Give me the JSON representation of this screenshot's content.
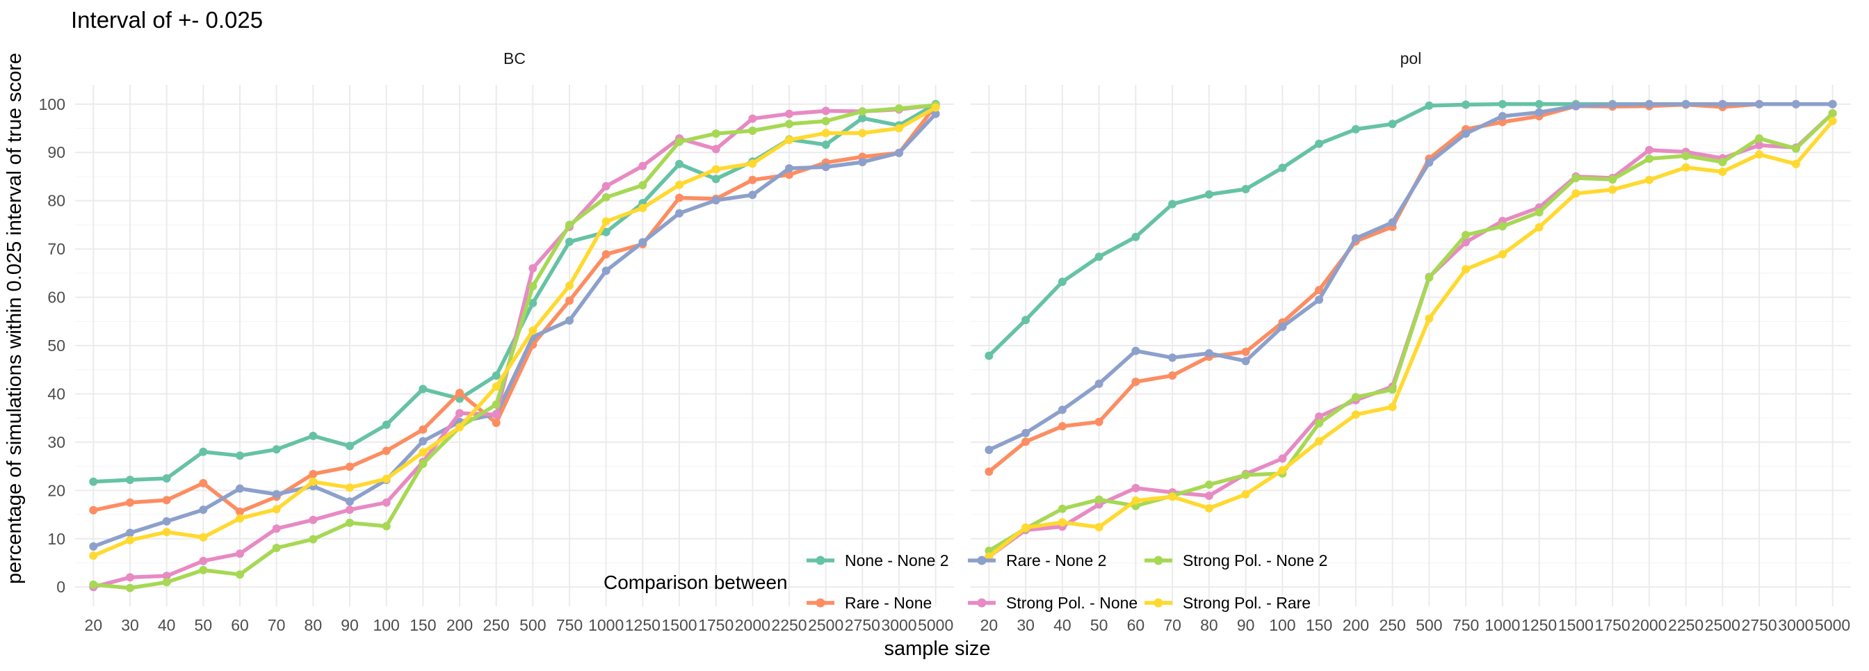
{
  "chart_data": {
    "type": "line",
    "title": "Interval of +- 0.025",
    "xlabel": "sample size",
    "ylabel": "percentage of simulations within 0.025 interval of true score",
    "ylim": [
      -4,
      104
    ],
    "y_ticks": [
      0,
      10,
      20,
      30,
      40,
      50,
      60,
      70,
      80,
      90,
      100
    ],
    "grid": true,
    "legend": {
      "title": "Comparison between",
      "position": "bottom",
      "entries": [
        {
          "name": "None - None 2",
          "color": "#66C2A5"
        },
        {
          "name": "Rare - None 2",
          "color": "#8DA0CB"
        },
        {
          "name": "Strong Pol. - None 2",
          "color": "#A6D854"
        },
        {
          "name": "Rare - None",
          "color": "#FC8D62"
        },
        {
          "name": "Strong Pol. - None",
          "color": "#E78AC3"
        },
        {
          "name": "Strong Pol. - Rare",
          "color": "#FFD92F"
        }
      ]
    },
    "categories": [
      "20",
      "30",
      "40",
      "50",
      "60",
      "70",
      "80",
      "90",
      "100",
      "150",
      "200",
      "250",
      "500",
      "750",
      "1000",
      "1250",
      "1500",
      "1750",
      "2000",
      "2250",
      "2500",
      "2750",
      "3000",
      "5000"
    ],
    "panels": [
      {
        "label": "BC",
        "series": [
          {
            "name": "None - None 2",
            "color": "#66C2A5",
            "values": [
              21.8,
              22.2,
              22.5,
              28,
              27.2,
              28.5,
              31.3,
              29.2,
              33.6,
              41,
              39,
              43.8,
              58.8,
              71.5,
              73.5,
              79.5,
              87.6,
              84.5,
              88.1,
              92.7,
              91.6,
              97.1,
              95.6,
              100
            ]
          },
          {
            "name": "Rare - None",
            "color": "#FC8D62",
            "values": [
              15.9,
              17.5,
              18,
              21.5,
              15.6,
              18.7,
              23.4,
              24.9,
              28.2,
              32.6,
              40.2,
              34,
              50.2,
              59.3,
              68.9,
              71,
              80.6,
              80.4,
              84.3,
              85.4,
              87.9,
              89.1,
              89.9,
              99.7
            ]
          },
          {
            "name": "Rare - None 2",
            "color": "#8DA0CB",
            "values": [
              8.4,
              11.2,
              13.6,
              16,
              20.4,
              19.2,
              20.9,
              17.7,
              22.2,
              30.2,
              34.2,
              35.8,
              51.8,
              55.2,
              65.5,
              71.4,
              77.4,
              80.1,
              81.2,
              86.7,
              87,
              88,
              89.9,
              98
            ]
          },
          {
            "name": "Strong Pol. - None",
            "color": "#E78AC3",
            "values": [
              0,
              2,
              2.3,
              5.4,
              6.9,
              12.1,
              13.9,
              16,
              17.5,
              25.9,
              36,
              35.7,
              66,
              74.6,
              83,
              87.2,
              92.9,
              90.7,
              97,
              98,
              98.6,
              98.5,
              98.9,
              99.8
            ]
          },
          {
            "name": "Strong Pol. - None 2",
            "color": "#A6D854",
            "values": [
              0.5,
              -0.2,
              1,
              3.5,
              2.6,
              8.1,
              9.9,
              13.3,
              12.6,
              25.5,
              33.1,
              37.8,
              62.3,
              75,
              80.7,
              83.2,
              92.2,
              93.9,
              94.5,
              95.9,
              96.5,
              98.5,
              99.1,
              99.8
            ]
          },
          {
            "name": "Strong Pol. - Rare",
            "color": "#FFD92F",
            "values": [
              6.5,
              9.7,
              11.4,
              10.3,
              14.2,
              16.1,
              21.8,
              20.6,
              22.4,
              27.9,
              33.1,
              41.5,
              53.1,
              62.4,
              75.7,
              78.5,
              83.3,
              86.5,
              87.7,
              92.6,
              94,
              94,
              95,
              99.3
            ]
          }
        ]
      },
      {
        "label": "pol",
        "series": [
          {
            "name": "None - None 2",
            "color": "#66C2A5",
            "values": [
              47.9,
              55.3,
              63.2,
              68.4,
              72.5,
              79.3,
              81.3,
              82.4,
              86.8,
              91.8,
              94.8,
              95.9,
              99.7,
              99.9,
              100,
              100,
              100,
              100,
              100,
              100,
              100,
              100,
              100,
              100
            ]
          },
          {
            "name": "Rare - None",
            "color": "#FC8D62",
            "values": [
              23.9,
              30.1,
              33.3,
              34.2,
              42.5,
              43.8,
              47.7,
              48.7,
              54.8,
              61.5,
              71.6,
              74.6,
              88.7,
              94.8,
              96.3,
              97.5,
              99.6,
              99.5,
              99.6,
              99.9,
              99.4,
              100,
              100,
              100
            ]
          },
          {
            "name": "Rare - None 2",
            "color": "#8DA0CB",
            "values": [
              28.4,
              31.9,
              36.7,
              42.1,
              48.9,
              47.5,
              48.4,
              46.8,
              53.9,
              59.5,
              72.2,
              75.5,
              87.9,
              93.9,
              97.5,
              98.3,
              99.6,
              99.9,
              100,
              100,
              100,
              100,
              100,
              100
            ]
          },
          {
            "name": "Strong Pol. - None",
            "color": "#E78AC3",
            "values": [
              6.3,
              11.8,
              12.5,
              17.1,
              20.5,
              19.6,
              18.9,
              23.4,
              26.6,
              35.3,
              38.7,
              41.5,
              64.2,
              71.4,
              75.8,
              78.6,
              85,
              84.7,
              90.5,
              90.1,
              88.8,
              91.5,
              91,
              98.1
            ]
          },
          {
            "name": "Strong Pol. - None 2",
            "color": "#A6D854",
            "values": [
              7.5,
              12.1,
              16.2,
              18.1,
              16.8,
              18.9,
              21.2,
              23.2,
              23.5,
              33.9,
              39.3,
              40.9,
              64.1,
              72.9,
              74.7,
              77.6,
              84.7,
              84.4,
              88.7,
              89.3,
              88,
              92.9,
              90.8,
              98.1
            ]
          },
          {
            "name": "Strong Pol. - Rare",
            "color": "#FFD92F",
            "values": [
              6.3,
              12.3,
              13.4,
              12.4,
              17.9,
              18.7,
              16.3,
              19.2,
              24.2,
              30.2,
              35.7,
              37.3,
              55.6,
              65.8,
              68.9,
              74.5,
              81.5,
              82.3,
              84.3,
              86.9,
              86,
              89.6,
              87.6,
              96.5
            ]
          }
        ]
      }
    ]
  }
}
